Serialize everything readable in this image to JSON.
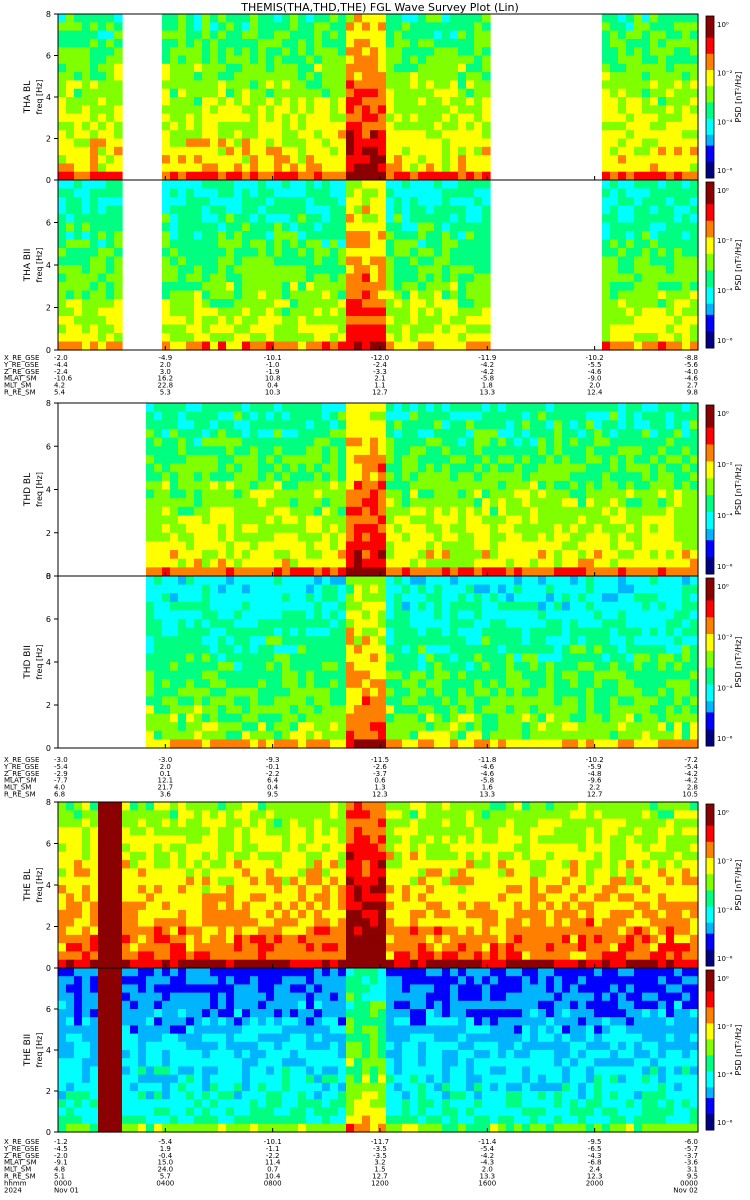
{
  "title": "THEMIS(THA,THD,THE) FGL Wave Survey Plot (Lin)",
  "colorbar_label": "PSD [nT²/Hz]",
  "freq_unit": "freq [Hz]",
  "colormap": [
    "#000080",
    "#0000ff",
    "#00b4ff",
    "#00ffff",
    "#00ff80",
    "#80ff00",
    "#ffff00",
    "#ff8000",
    "#ff0000",
    "#8b0000"
  ],
  "panels": [
    {
      "id": "tha-bl",
      "label": "THA BL",
      "ylabel": "freq [Hz]",
      "yticks": [
        "0",
        "2",
        "4",
        "6",
        "8"
      ],
      "cbar_ticks": [
        "10⁰",
        "10⁻²",
        "10⁻⁴",
        "10⁻⁶"
      ],
      "level": 0.45,
      "gaps": [
        [
          0.09,
          0.16
        ],
        [
          0.67,
          0.84
        ]
      ]
    },
    {
      "id": "tha-bii",
      "label": "THA BII",
      "ylabel": "freq [Hz]",
      "yticks": [
        "0",
        "2",
        "4",
        "6"
      ],
      "cbar_ticks": [
        "10⁰",
        "10⁻²",
        "10⁻⁴",
        "10⁻⁶"
      ],
      "level": 0.38,
      "gaps": [
        [
          0.09,
          0.16
        ],
        [
          0.67,
          0.84
        ]
      ]
    },
    {
      "id": "thd-bl",
      "label": "THD BL",
      "ylabel": "freq [Hz]",
      "yticks": [
        "0",
        "2",
        "4",
        "6",
        "8"
      ],
      "cbar_ticks": [
        "10⁰",
        "10⁻²",
        "10⁻⁴",
        "10⁻⁶"
      ],
      "level": 0.42,
      "gaps": [
        [
          0.0,
          0.13
        ]
      ]
    },
    {
      "id": "thd-bii",
      "label": "THD BII",
      "ylabel": "freq [Hz]",
      "yticks": [
        "0",
        "2",
        "4",
        "6",
        "8"
      ],
      "cbar_ticks": [
        "10⁰",
        "10⁻²",
        "10⁻⁴",
        "10⁻⁶"
      ],
      "level": 0.34,
      "gaps": [
        [
          0.0,
          0.13
        ]
      ]
    },
    {
      "id": "the-bl",
      "label": "THE BL",
      "ylabel": "freq [Hz]",
      "yticks": [
        "0",
        "2",
        "4",
        "6",
        "8"
      ],
      "cbar_ticks": [
        "10⁰",
        "10⁻²",
        "10⁻⁴",
        "10⁻⁶"
      ],
      "level": 0.55,
      "gaps": []
    },
    {
      "id": "the-bii",
      "label": "THE BII",
      "ylabel": "freq [Hz]",
      "yticks": [
        "0",
        "2",
        "4",
        "6"
      ],
      "cbar_ticks": [
        "10⁰",
        "10⁻²",
        "10⁻⁴",
        "10⁻⁶"
      ],
      "level": 0.18,
      "gaps": []
    }
  ],
  "ephem_blocks": [
    {
      "rows": [
        {
          "name": "X_RE_GSE",
          "values": [
            "-2.0",
            "-4.9",
            "-10.1",
            "-12.0",
            "-11.9",
            "-10.2",
            "-8.8"
          ]
        },
        {
          "name": "Y_RE_GSE",
          "values": [
            "-4.4",
            "2.0",
            "-1.0",
            "-2.4",
            "-4.2",
            "-5.5",
            "-5.6"
          ]
        },
        {
          "name": "Z_RE_GSE",
          "values": [
            "-2.4",
            "3.0",
            "-1.9",
            "-3.3",
            "-4.2",
            "-4.6",
            "-4.0"
          ]
        },
        {
          "name": "MLAT_SM",
          "values": [
            "-10.6",
            "16.2",
            "10.8",
            "2.1",
            "-5.8",
            "-9.0",
            "-4.6"
          ]
        },
        {
          "name": "MLT_SM",
          "values": [
            "4.2",
            "22.8",
            "0.4",
            "1.1",
            "1.8",
            "2.0",
            "2.7"
          ]
        },
        {
          "name": "R_RE_SM",
          "values": [
            "5.4",
            "5.3",
            "10.3",
            "12.7",
            "13.3",
            "12.4",
            "9.8"
          ]
        }
      ]
    },
    {
      "rows": [
        {
          "name": "X_RE_GSE",
          "values": [
            "-3.0",
            "-3.0",
            "-9.3",
            "-11.5",
            "-11.8",
            "-10.2",
            "-7.2"
          ]
        },
        {
          "name": "Y_RE_GSE",
          "values": [
            "-5.4",
            "2.0",
            "-0.1",
            "-2.6",
            "-4.6",
            "-5.9",
            "-5.4"
          ]
        },
        {
          "name": "Z_RE_GSE",
          "values": [
            "-2.9",
            "0.1",
            "-2.2",
            "-3.7",
            "-4.6",
            "-4.8",
            "-4.2"
          ]
        },
        {
          "name": "MLAT_SM",
          "values": [
            "-7.7",
            "12.1",
            "6.4",
            "0.6",
            "-5.8",
            "-9.6",
            "-4.2"
          ]
        },
        {
          "name": "MLT_SM",
          "values": [
            "4.0",
            "21.7",
            "0.4",
            "1.3",
            "1.6",
            "2.2",
            "2.8"
          ]
        },
        {
          "name": "R_RE_SM",
          "values": [
            "6.8",
            "3.6",
            "9.5",
            "12.3",
            "13.3",
            "12.7",
            "10.5"
          ]
        }
      ]
    },
    {
      "rows": [
        {
          "name": "X_RE_GSE",
          "values": [
            "-1.2",
            "-5.4",
            "-10.1",
            "-11.7",
            "-11.4",
            "-9.5",
            "-6.0"
          ]
        },
        {
          "name": "Y_RE_GSE",
          "values": [
            "-4.5",
            "1.9",
            "-1.1",
            "-3.5",
            "-5.4",
            "-6.5",
            "-5.7"
          ]
        },
        {
          "name": "Z_RE_GSE",
          "values": [
            "-2.0",
            "-0.4",
            "-2.2",
            "-3.5",
            "-4.2",
            "-4.3",
            "-3.7"
          ]
        },
        {
          "name": "MLAT_SM",
          "values": [
            "-9.1",
            "15.0",
            "11.4",
            "3.2",
            "-4.3",
            "-6.8",
            "-3.6"
          ]
        },
        {
          "name": "MLT_SM",
          "values": [
            "4.8",
            "24.0",
            "0.7",
            "1.5",
            "2.0",
            "2.4",
            "3.1"
          ]
        },
        {
          "name": "R_RE_SM",
          "values": [
            "5.1",
            "5.7",
            "10.4",
            "12.7",
            "13.3",
            "12.3",
            "9.5"
          ]
        },
        {
          "name": "hhmm",
          "values": [
            "0000",
            "0400",
            "0800",
            "1200",
            "1600",
            "2000",
            "0000"
          ]
        },
        {
          "name": "2024",
          "values": [
            "Nov 01",
            "",
            "",
            "",
            "",
            "",
            "Nov 02"
          ]
        }
      ]
    }
  ],
  "chart_data": {
    "type": "heatmap",
    "title": "THEMIS(THA,THD,THE) FGL Wave Survey Plot (Lin)",
    "xlabel": "hhmm",
    "x_ticks": [
      "0000",
      "0400",
      "0800",
      "1200",
      "1600",
      "2000",
      "0000"
    ],
    "ylabel": "freq [Hz]",
    "ylim": [
      0,
      8
    ],
    "colorbar": {
      "label": "PSD [nT²/Hz]",
      "scale": "log",
      "ticks": [
        "10⁰",
        "10⁻²",
        "10⁻⁴",
        "10⁻⁶"
      ]
    },
    "series": [
      {
        "name": "THA BL"
      },
      {
        "name": "THA BII"
      },
      {
        "name": "THD BL"
      },
      {
        "name": "THD BII"
      },
      {
        "name": "THE BL"
      },
      {
        "name": "THE BII"
      }
    ]
  }
}
